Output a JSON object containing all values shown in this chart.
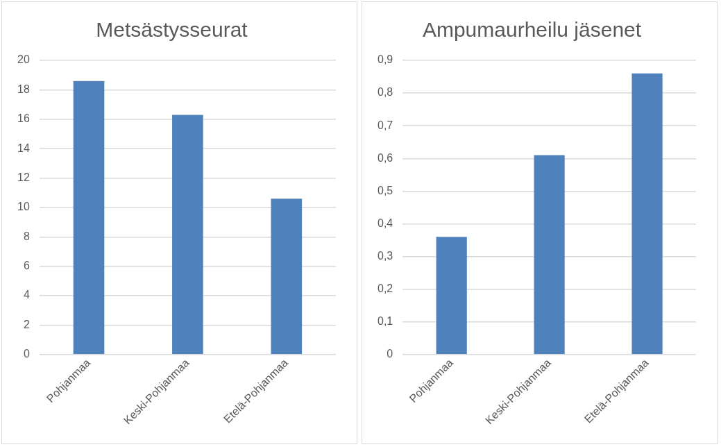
{
  "chart_data": [
    {
      "type": "bar",
      "title": "Metsästysseurat",
      "categories": [
        "Pohjanmaa",
        "Keski-Pohjanmaa",
        "Etelä-Pohjanmaa"
      ],
      "values": [
        18.6,
        16.3,
        10.6
      ],
      "color": "#4f81bd",
      "ylim": [
        0,
        20
      ],
      "yticks": [
        0,
        2,
        4,
        6,
        8,
        10,
        12,
        14,
        16,
        18,
        20
      ],
      "grid": "y",
      "legend": false
    },
    {
      "type": "bar",
      "title": "Ampumaurheilu jäsenet",
      "categories": [
        "Pohjanmaa",
        "Keski-Pohjanmaa",
        "Etelä-Pohjanmaa"
      ],
      "values": [
        0.36,
        0.61,
        0.86
      ],
      "color": "#4f81bd",
      "ylim": [
        0,
        0.9
      ],
      "yticks": [
        0,
        {
          "value": 0.1,
          "label": "0,1"
        },
        {
          "value": 0.2,
          "label": "0,2"
        },
        {
          "value": 0.3,
          "label": "0,3"
        },
        {
          "value": 0.4,
          "label": "0,4"
        },
        {
          "value": 0.5,
          "label": "0,5"
        },
        {
          "value": 0.6,
          "label": "0,6"
        },
        {
          "value": 0.7,
          "label": "0,7"
        },
        {
          "value": 0.8,
          "label": "0,8"
        },
        {
          "value": 0.9,
          "label": "0,9"
        }
      ],
      "grid": "y",
      "legend": false
    }
  ]
}
